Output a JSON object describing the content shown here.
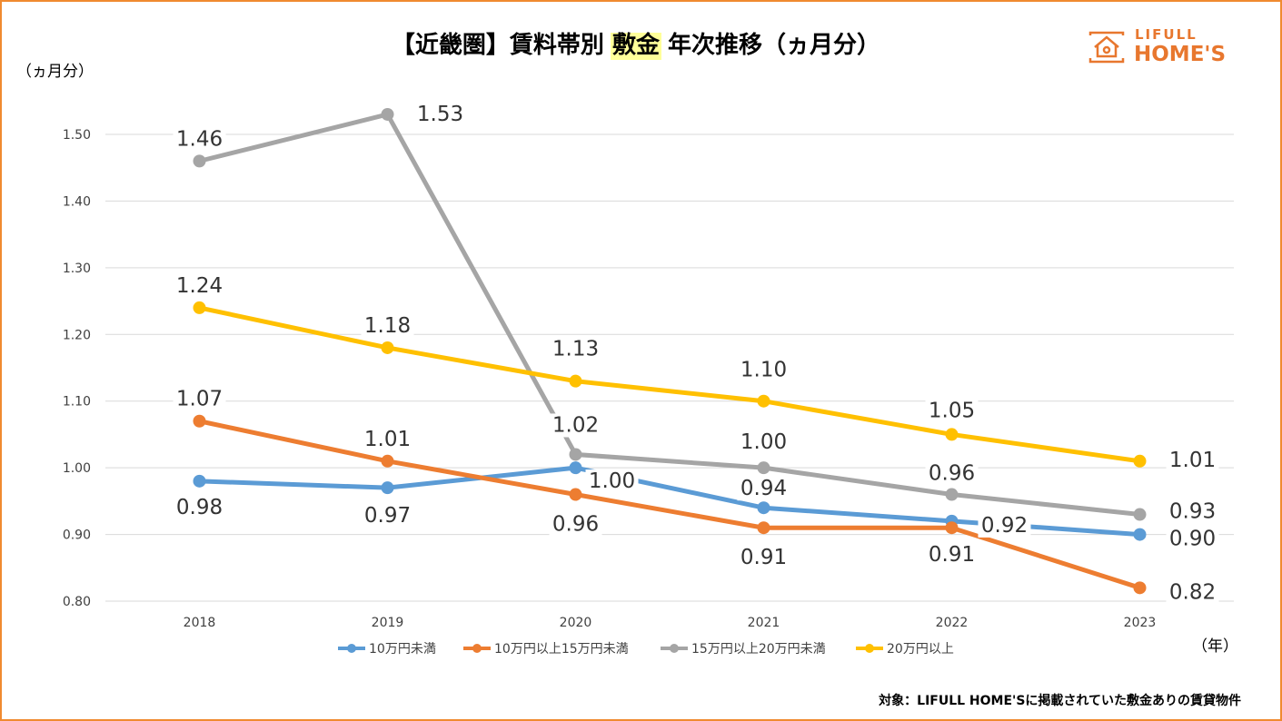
{
  "colors": {
    "border": "#f08a30",
    "grid": "#d9d9d9",
    "axis_text": "#404040",
    "highlight": "#ffff99",
    "logo": "#e8772e"
  },
  "title": {
    "prefix": "【近畿圏】賃料帯別 ",
    "highlight": "敷金",
    "suffix": " 年次推移（ヵ月分）"
  },
  "logo": {
    "icon": "house-icon",
    "line1": "LIFULL",
    "line2": "HOME'S"
  },
  "footnote": "対象：LIFULL HOME'Sに掲載されていた敷金ありの賃貸物件",
  "chart_data": {
    "type": "line",
    "title": "【近畿圏】賃料帯別 敷金 年次推移（ヵ月分）",
    "xlabel": "（年）",
    "ylabel": "（ヵ月分）",
    "categories": [
      "2018",
      "2019",
      "2020",
      "2021",
      "2022",
      "2023"
    ],
    "ylim": [
      0.8,
      1.5
    ],
    "yticks": [
      "0.80",
      "0.90",
      "1.00",
      "1.10",
      "1.20",
      "1.30",
      "1.40",
      "1.50"
    ],
    "grid": true,
    "legend_position": "bottom",
    "series": [
      {
        "name": "10万円未満",
        "color": "#5b9bd5",
        "values": [
          0.98,
          0.97,
          1.0,
          0.94,
          0.92,
          0.9
        ],
        "labels": [
          "0.98",
          "0.97",
          "1.00",
          "0.94",
          "0.92",
          "0.90"
        ]
      },
      {
        "name": "10万円以上15万円未満",
        "color": "#ed7d31",
        "values": [
          1.07,
          1.01,
          0.96,
          0.91,
          0.91,
          0.82
        ],
        "labels": [
          "1.07",
          "1.01",
          "0.96",
          "0.91",
          "0.91",
          "0.82"
        ]
      },
      {
        "name": "15万円以上20万円未満",
        "color": "#a5a5a5",
        "values": [
          1.46,
          1.53,
          1.02,
          1.0,
          0.96,
          0.93
        ],
        "labels": [
          "1.46",
          "1.53",
          "1.02",
          "1.00",
          "0.96",
          "0.93"
        ]
      },
      {
        "name": "20万円以上",
        "color": "#ffc000",
        "values": [
          1.24,
          1.18,
          1.13,
          1.1,
          1.05,
          1.01
        ],
        "labels": [
          "1.24",
          "1.18",
          "1.13",
          "1.10",
          "1.05",
          "1.01"
        ]
      }
    ]
  }
}
